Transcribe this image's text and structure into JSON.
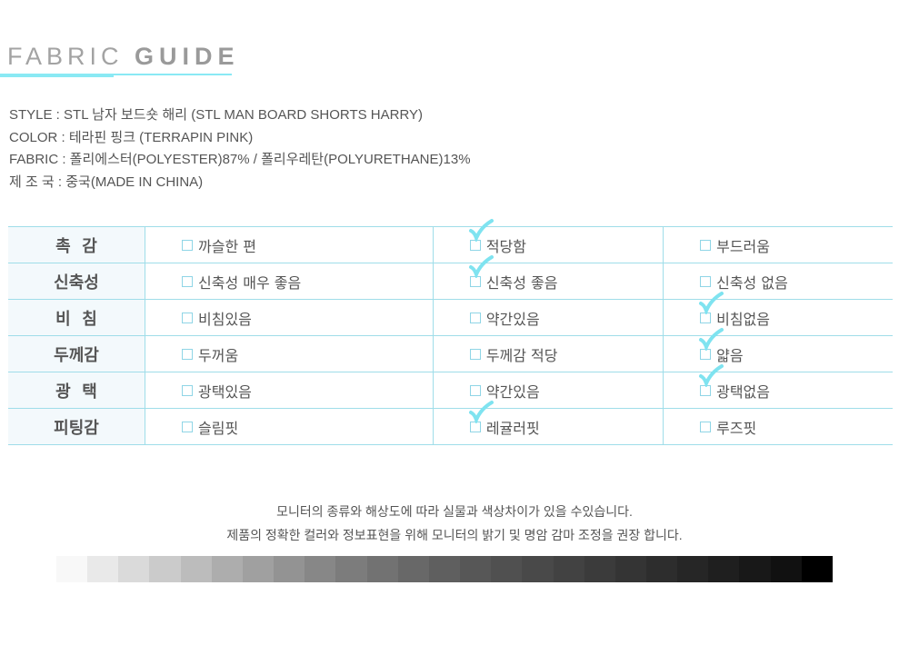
{
  "title": {
    "light": "FABRIC",
    "bold": "GUIDE"
  },
  "info": [
    "STYLE : STL 남자 보드숏 해리 (STL MAN BOARD SHORTS HARRY)",
    "COLOR : 테라핀 핑크 (TERRAPIN PINK)",
    "FABRIC : 폴리에스터(POLYESTER)87% / 폴리우레탄(POLYURETHANE)13%",
    "제 조 국 : 중국(MADE IN CHINA)"
  ],
  "accent": "#8ae9f4",
  "rows": [
    {
      "label": "촉  감",
      "options": [
        "까슬한 편",
        "적당함",
        "부드러움"
      ],
      "checked": 1
    },
    {
      "label": "신축성",
      "options": [
        "신축성 매우 좋음",
        "신축성 좋음",
        "신축성 없음"
      ],
      "checked": 1
    },
    {
      "label": "비  침",
      "options": [
        "비침있음",
        "약간있음",
        "비침없음"
      ],
      "checked": 2
    },
    {
      "label": "두께감",
      "options": [
        "두꺼움",
        "두께감 적당",
        "얇음"
      ],
      "checked": 2
    },
    {
      "label": "광  택",
      "options": [
        "광택있음",
        "약간있음",
        "광택없음"
      ],
      "checked": 2
    },
    {
      "label": "피팅감",
      "options": [
        "슬림핏",
        "레귤러핏",
        "루즈핏"
      ],
      "checked": 1
    }
  ],
  "notes": [
    "모니터의 종류와 해상도에 따라 실물과 색상차이가 있을 수있습니다.",
    "제품의 정확한 컬러와 정보표현을 위해 모니터의 밝기 및 명암 감마 조정을 권장 합니다."
  ],
  "grayscale": [
    "#f8f8f8",
    "#e9e9e9",
    "#dadada",
    "#cbcbcb",
    "#bcbcbc",
    "#adadad",
    "#a0a0a0",
    "#939393",
    "#878787",
    "#7c7c7c",
    "#727272",
    "#686868",
    "#5f5f5f",
    "#575757",
    "#505050",
    "#494949",
    "#424242",
    "#3b3b3b",
    "#343434",
    "#2d2d2d",
    "#262626",
    "#1f1f1f",
    "#181818",
    "#111111",
    "#000000"
  ]
}
